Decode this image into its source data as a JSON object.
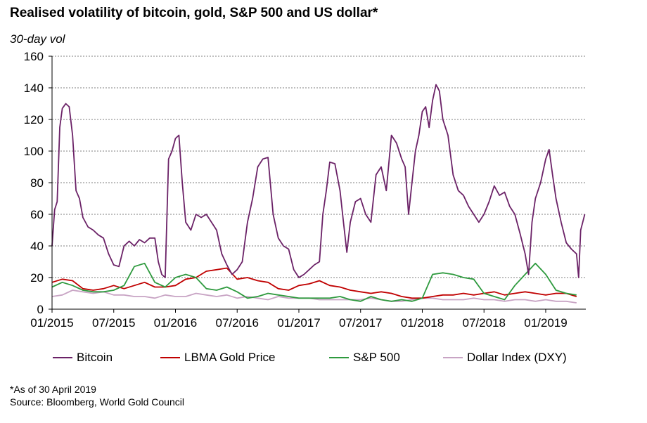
{
  "title": "Realised volatility of bitcoin, gold, S&P 500 and US dollar*",
  "unit_label": "30-day vol",
  "footnote": {
    "asof": "*As of 30 April 2019",
    "source": "Source: Bloomberg, World Gold Council"
  },
  "chart_data": {
    "type": "line",
    "title": "Realised volatility of bitcoin, gold, S&P 500 and US dollar*",
    "ylabel": "30-day vol",
    "ylim": [
      0,
      160
    ],
    "yticks": [
      0,
      20,
      40,
      60,
      80,
      100,
      120,
      140,
      160
    ],
    "xlim": [
      "2015-01",
      "2019-05"
    ],
    "xtick_labels": [
      "01/2015",
      "07/2015",
      "01/2016",
      "07/2016",
      "01/2017",
      "07/2017",
      "01/2018",
      "07/2018",
      "01/2019"
    ],
    "grid": "horizontal dashed",
    "legend_position": "bottom",
    "series": [
      {
        "name": "Bitcoin",
        "color": "#6b2267",
        "points": [
          [
            "2015-01",
            40
          ],
          [
            "2015-01",
            63
          ],
          [
            "2015-01",
            68
          ],
          [
            "2015-01",
            115
          ],
          [
            "2015-02",
            127
          ],
          [
            "2015-02",
            130
          ],
          [
            "2015-02",
            128
          ],
          [
            "2015-03",
            110
          ],
          [
            "2015-03",
            75
          ],
          [
            "2015-03",
            70
          ],
          [
            "2015-04",
            58
          ],
          [
            "2015-04",
            52
          ],
          [
            "2015-05",
            50
          ],
          [
            "2015-05",
            47
          ],
          [
            "2015-06",
            45
          ],
          [
            "2015-06",
            35
          ],
          [
            "2015-07",
            28
          ],
          [
            "2015-07",
            27
          ],
          [
            "2015-08",
            40
          ],
          [
            "2015-08",
            43
          ],
          [
            "2015-09",
            40
          ],
          [
            "2015-09",
            44
          ],
          [
            "2015-10",
            42
          ],
          [
            "2015-10",
            45
          ],
          [
            "2015-11",
            45
          ],
          [
            "2015-11",
            30
          ],
          [
            "2015-11",
            22
          ],
          [
            "2015-12",
            20
          ],
          [
            "2015-12",
            95
          ],
          [
            "2015-12",
            100
          ],
          [
            "2016-01",
            108
          ],
          [
            "2016-01",
            110
          ],
          [
            "2016-01",
            80
          ],
          [
            "2016-02",
            55
          ],
          [
            "2016-02",
            50
          ],
          [
            "2016-03",
            60
          ],
          [
            "2016-03",
            58
          ],
          [
            "2016-04",
            60
          ],
          [
            "2016-04",
            55
          ],
          [
            "2016-05",
            50
          ],
          [
            "2016-05",
            35
          ],
          [
            "2016-06",
            28
          ],
          [
            "2016-06",
            22
          ],
          [
            "2016-07",
            25
          ],
          [
            "2016-07",
            30
          ],
          [
            "2016-08",
            55
          ],
          [
            "2016-08",
            70
          ],
          [
            "2016-09",
            90
          ],
          [
            "2016-09",
            95
          ],
          [
            "2016-10",
            96
          ],
          [
            "2016-10",
            60
          ],
          [
            "2016-11",
            45
          ],
          [
            "2016-11",
            40
          ],
          [
            "2016-12",
            38
          ],
          [
            "2016-12",
            25
          ],
          [
            "2017-01",
            20
          ],
          [
            "2017-01",
            22
          ],
          [
            "2017-02",
            25
          ],
          [
            "2017-02",
            28
          ],
          [
            "2017-03",
            30
          ],
          [
            "2017-03",
            60
          ],
          [
            "2017-03",
            75
          ],
          [
            "2017-04",
            93
          ],
          [
            "2017-04",
            92
          ],
          [
            "2017-05",
            75
          ],
          [
            "2017-05",
            55
          ],
          [
            "2017-05",
            36
          ],
          [
            "2017-06",
            55
          ],
          [
            "2017-06",
            68
          ],
          [
            "2017-07",
            70
          ],
          [
            "2017-07",
            60
          ],
          [
            "2017-08",
            55
          ],
          [
            "2017-08",
            85
          ],
          [
            "2017-09",
            90
          ],
          [
            "2017-09",
            75
          ],
          [
            "2017-10",
            110
          ],
          [
            "2017-10",
            105
          ],
          [
            "2017-11",
            95
          ],
          [
            "2017-11",
            90
          ],
          [
            "2017-11",
            60
          ],
          [
            "2017-12",
            80
          ],
          [
            "2017-12",
            100
          ],
          [
            "2017-12",
            110
          ],
          [
            "2018-01",
            125
          ],
          [
            "2018-01",
            128
          ],
          [
            "2018-01",
            115
          ],
          [
            "2018-02",
            132
          ],
          [
            "2018-02",
            142
          ],
          [
            "2018-02",
            138
          ],
          [
            "2018-03",
            120
          ],
          [
            "2018-03",
            110
          ],
          [
            "2018-04",
            85
          ],
          [
            "2018-04",
            75
          ],
          [
            "2018-05",
            72
          ],
          [
            "2018-05",
            65
          ],
          [
            "2018-06",
            60
          ],
          [
            "2018-06",
            55
          ],
          [
            "2018-07",
            60
          ],
          [
            "2018-07",
            68
          ],
          [
            "2018-08",
            78
          ],
          [
            "2018-08",
            72
          ],
          [
            "2018-09",
            74
          ],
          [
            "2018-09",
            65
          ],
          [
            "2018-10",
            60
          ],
          [
            "2018-10",
            48
          ],
          [
            "2018-11",
            35
          ],
          [
            "2018-11",
            22
          ],
          [
            "2018-11",
            55
          ],
          [
            "2018-12",
            70
          ],
          [
            "2018-12",
            80
          ],
          [
            "2019-01",
            95
          ],
          [
            "2019-01",
            101
          ],
          [
            "2019-01",
            85
          ],
          [
            "2019-02",
            70
          ],
          [
            "2019-02",
            55
          ],
          [
            "2019-03",
            42
          ],
          [
            "2019-03",
            38
          ],
          [
            "2019-04",
            35
          ],
          [
            "2019-04",
            20
          ],
          [
            "2019-04",
            50
          ],
          [
            "2019-04",
            55
          ],
          [
            "2019-04",
            60
          ]
        ]
      },
      {
        "name": "LBMA Gold Price",
        "color": "#c00000",
        "points": [
          [
            "2015-01",
            17
          ],
          [
            "2015-02",
            19
          ],
          [
            "2015-03",
            18
          ],
          [
            "2015-04",
            13
          ],
          [
            "2015-05",
            12
          ],
          [
            "2015-06",
            13
          ],
          [
            "2015-07",
            15
          ],
          [
            "2015-08",
            13
          ],
          [
            "2015-09",
            15
          ],
          [
            "2015-10",
            17
          ],
          [
            "2015-11",
            14
          ],
          [
            "2015-12",
            14
          ],
          [
            "2016-01",
            15
          ],
          [
            "2016-02",
            19
          ],
          [
            "2016-03",
            20
          ],
          [
            "2016-04",
            24
          ],
          [
            "2016-05",
            25
          ],
          [
            "2016-06",
            26
          ],
          [
            "2016-07",
            19
          ],
          [
            "2016-08",
            20
          ],
          [
            "2016-09",
            18
          ],
          [
            "2016-10",
            17
          ],
          [
            "2016-11",
            13
          ],
          [
            "2016-12",
            12
          ],
          [
            "2017-01",
            15
          ],
          [
            "2017-02",
            16
          ],
          [
            "2017-03",
            18
          ],
          [
            "2017-04",
            15
          ],
          [
            "2017-05",
            14
          ],
          [
            "2017-06",
            12
          ],
          [
            "2017-07",
            11
          ],
          [
            "2017-08",
            10
          ],
          [
            "2017-09",
            11
          ],
          [
            "2017-10",
            10
          ],
          [
            "2017-11",
            8
          ],
          [
            "2017-12",
            7
          ],
          [
            "2018-01",
            7
          ],
          [
            "2018-02",
            8
          ],
          [
            "2018-03",
            9
          ],
          [
            "2018-04",
            9
          ],
          [
            "2018-05",
            10
          ],
          [
            "2018-06",
            9
          ],
          [
            "2018-07",
            10
          ],
          [
            "2018-08",
            11
          ],
          [
            "2018-09",
            9
          ],
          [
            "2018-10",
            10
          ],
          [
            "2018-11",
            11
          ],
          [
            "2018-12",
            10
          ],
          [
            "2019-01",
            9
          ],
          [
            "2019-02",
            10
          ],
          [
            "2019-03",
            10
          ],
          [
            "2019-04",
            8
          ]
        ]
      },
      {
        "name": "S&P 500",
        "color": "#2e9a3e",
        "points": [
          [
            "2015-01",
            14
          ],
          [
            "2015-02",
            17
          ],
          [
            "2015-03",
            15
          ],
          [
            "2015-04",
            12
          ],
          [
            "2015-05",
            11
          ],
          [
            "2015-06",
            11
          ],
          [
            "2015-07",
            12
          ],
          [
            "2015-08",
            15
          ],
          [
            "2015-09",
            27
          ],
          [
            "2015-10",
            29
          ],
          [
            "2015-11",
            17
          ],
          [
            "2015-12",
            14
          ],
          [
            "2016-01",
            20
          ],
          [
            "2016-02",
            22
          ],
          [
            "2016-03",
            20
          ],
          [
            "2016-04",
            13
          ],
          [
            "2016-05",
            12
          ],
          [
            "2016-06",
            14
          ],
          [
            "2016-07",
            11
          ],
          [
            "2016-08",
            7
          ],
          [
            "2016-09",
            8
          ],
          [
            "2016-10",
            10
          ],
          [
            "2016-11",
            9
          ],
          [
            "2016-12",
            8
          ],
          [
            "2017-01",
            7
          ],
          [
            "2017-02",
            7
          ],
          [
            "2017-03",
            7
          ],
          [
            "2017-04",
            7
          ],
          [
            "2017-05",
            8
          ],
          [
            "2017-06",
            6
          ],
          [
            "2017-07",
            5
          ],
          [
            "2017-08",
            8
          ],
          [
            "2017-09",
            6
          ],
          [
            "2017-10",
            5
          ],
          [
            "2017-11",
            6
          ],
          [
            "2017-12",
            5
          ],
          [
            "2018-01",
            7
          ],
          [
            "2018-02",
            22
          ],
          [
            "2018-03",
            23
          ],
          [
            "2018-04",
            22
          ],
          [
            "2018-05",
            20
          ],
          [
            "2018-06",
            19
          ],
          [
            "2018-07",
            10
          ],
          [
            "2018-08",
            8
          ],
          [
            "2018-09",
            6
          ],
          [
            "2018-10",
            15
          ],
          [
            "2018-11",
            22
          ],
          [
            "2018-12",
            29
          ],
          [
            "2019-01",
            22
          ],
          [
            "2019-02",
            12
          ],
          [
            "2019-03",
            10
          ],
          [
            "2019-04",
            9
          ]
        ]
      },
      {
        "name": "Dollar Index (DXY)",
        "color": "#c8a4c4",
        "points": [
          [
            "2015-01",
            8
          ],
          [
            "2015-02",
            9
          ],
          [
            "2015-03",
            12
          ],
          [
            "2015-04",
            11
          ],
          [
            "2015-05",
            10
          ],
          [
            "2015-06",
            11
          ],
          [
            "2015-07",
            9
          ],
          [
            "2015-08",
            9
          ],
          [
            "2015-09",
            8
          ],
          [
            "2015-10",
            8
          ],
          [
            "2015-11",
            7
          ],
          [
            "2015-12",
            9
          ],
          [
            "2016-01",
            8
          ],
          [
            "2016-02",
            8
          ],
          [
            "2016-03",
            10
          ],
          [
            "2016-04",
            9
          ],
          [
            "2016-05",
            8
          ],
          [
            "2016-06",
            9
          ],
          [
            "2016-07",
            7
          ],
          [
            "2016-08",
            8
          ],
          [
            "2016-09",
            7
          ],
          [
            "2016-10",
            6
          ],
          [
            "2016-11",
            8
          ],
          [
            "2016-12",
            7
          ],
          [
            "2017-01",
            7
          ],
          [
            "2017-02",
            7
          ],
          [
            "2017-03",
            6
          ],
          [
            "2017-04",
            6
          ],
          [
            "2017-05",
            6
          ],
          [
            "2017-06",
            6
          ],
          [
            "2017-07",
            6
          ],
          [
            "2017-08",
            7
          ],
          [
            "2017-09",
            6
          ],
          [
            "2017-10",
            5
          ],
          [
            "2017-11",
            5
          ],
          [
            "2017-12",
            6
          ],
          [
            "2018-01",
            7
          ],
          [
            "2018-02",
            7
          ],
          [
            "2018-03",
            6
          ],
          [
            "2018-04",
            6
          ],
          [
            "2018-05",
            6
          ],
          [
            "2018-06",
            7
          ],
          [
            "2018-07",
            6
          ],
          [
            "2018-08",
            6
          ],
          [
            "2018-09",
            5
          ],
          [
            "2018-10",
            6
          ],
          [
            "2018-11",
            6
          ],
          [
            "2018-12",
            5
          ],
          [
            "2019-01",
            6
          ],
          [
            "2019-02",
            5
          ],
          [
            "2019-03",
            5
          ],
          [
            "2019-04",
            4
          ]
        ]
      }
    ]
  }
}
